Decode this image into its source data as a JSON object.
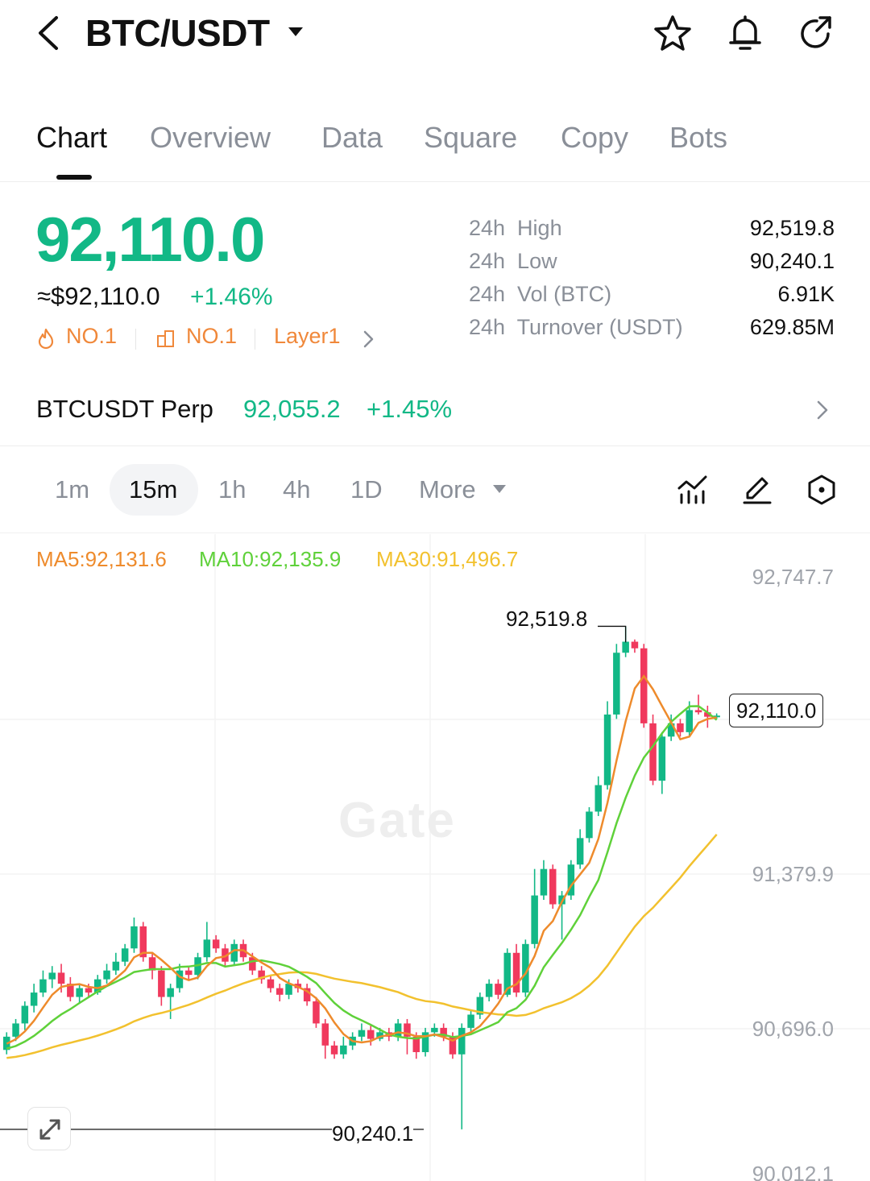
{
  "header": {
    "pair": "BTC/USDT",
    "icons": [
      "back-icon",
      "caret-down-icon",
      "star-icon",
      "bell-icon",
      "share-icon"
    ]
  },
  "tabs": [
    "Chart",
    "Overview",
    "Data",
    "Square",
    "Copy",
    "Bots"
  ],
  "ticker": {
    "last_price": "92,110.0",
    "usd_price": "≈$92,110.0",
    "change": "+1.46%",
    "tags": [
      "NO.1",
      "NO.1",
      "Layer1"
    ],
    "stats": [
      {
        "label": "24h  High",
        "value": "92,519.8"
      },
      {
        "label": "24h  Low",
        "value": "90,240.1"
      },
      {
        "label": "24h  Vol (BTC)",
        "value": "6.91K"
      },
      {
        "label": "24h  Turnover (USDT)",
        "value": "629.85M"
      }
    ]
  },
  "perp": {
    "name": "BTCUSDT Perp",
    "price": "92,055.2",
    "change": "+1.45%"
  },
  "intervals": {
    "items": [
      "1m",
      "15m",
      "1h",
      "4h",
      "1D",
      "More"
    ],
    "selected": "15m"
  },
  "chart": {
    "ma5": "MA5:92,131.6",
    "ma10": "MA10:92,135.9",
    "ma30": "MA30:91,496.7",
    "y_labels": [
      "92,747.7",
      "91,379.9",
      "90,696.0",
      "90,012.1"
    ],
    "high_marker": "92,519.8",
    "low_marker": "90,240.1",
    "last_price": "92,110.0",
    "watermark": "Gate",
    "colors": {
      "up": "#12b886",
      "down": "#f0395d",
      "ma5": "#ee8b2c",
      "ma10": "#5fd13a",
      "ma30": "#f2c12e"
    }
  },
  "chart_data": {
    "type": "candlestick",
    "interval": "15m",
    "y_axis_ticks": [
      92747.7,
      91379.9,
      90696.0,
      90012.1
    ],
    "candles": [
      [
        90600,
        90660,
        90580,
        90680
      ],
      [
        90660,
        90720,
        90640,
        90740
      ],
      [
        90720,
        90800,
        90690,
        90820
      ],
      [
        90800,
        90860,
        90770,
        90900
      ],
      [
        90860,
        90920,
        90840,
        90960
      ],
      [
        90920,
        90950,
        90880,
        90980
      ],
      [
        90950,
        90900,
        90860,
        90990
      ],
      [
        90900,
        90840,
        90820,
        90930
      ],
      [
        90840,
        90880,
        90810,
        90900
      ],
      [
        90880,
        90860,
        90840,
        90900
      ],
      [
        90860,
        90920,
        90850,
        90940
      ],
      [
        90920,
        90960,
        90900,
        90990
      ],
      [
        90960,
        91000,
        90940,
        91040
      ],
      [
        91000,
        91060,
        90980,
        91080
      ],
      [
        91060,
        91160,
        91040,
        91200
      ],
      [
        91160,
        91020,
        91000,
        91180
      ],
      [
        91020,
        90960,
        90920,
        91040
      ],
      [
        90960,
        90840,
        90800,
        90980
      ],
      [
        90840,
        90880,
        90740,
        90900
      ],
      [
        90880,
        90960,
        90860,
        90990
      ],
      [
        90960,
        90940,
        90920,
        90980
      ],
      [
        90940,
        91020,
        90920,
        91040
      ],
      [
        91020,
        91100,
        91000,
        91180
      ],
      [
        91100,
        91060,
        91040,
        91120
      ],
      [
        91060,
        91000,
        90980,
        91080
      ],
      [
        91000,
        91080,
        90980,
        91100
      ],
      [
        91080,
        91020,
        91000,
        91100
      ],
      [
        91020,
        90960,
        90940,
        91040
      ],
      [
        90960,
        90920,
        90900,
        90980
      ],
      [
        90920,
        90880,
        90860,
        90940
      ],
      [
        90880,
        90850,
        90820,
        90900
      ],
      [
        90850,
        90900,
        90830,
        90920
      ],
      [
        90900,
        90880,
        90860,
        90920
      ],
      [
        90880,
        90820,
        90800,
        90900
      ],
      [
        90820,
        90720,
        90700,
        90840
      ],
      [
        90720,
        90620,
        90560,
        90740
      ],
      [
        90620,
        90580,
        90560,
        90640
      ],
      [
        90580,
        90620,
        90560,
        90660
      ],
      [
        90620,
        90660,
        90600,
        90680
      ],
      [
        90660,
        90690,
        90640,
        90720
      ],
      [
        90690,
        90650,
        90620,
        90710
      ],
      [
        90650,
        90680,
        90640,
        90700
      ],
      [
        90680,
        90660,
        90640,
        90700
      ],
      [
        90660,
        90720,
        90640,
        90740
      ],
      [
        90720,
        90660,
        90580,
        90740
      ],
      [
        90660,
        90590,
        90560,
        90680
      ],
      [
        90590,
        90680,
        90570,
        90700
      ],
      [
        90680,
        90700,
        90660,
        90720
      ],
      [
        90700,
        90660,
        90640,
        90720
      ],
      [
        90660,
        90580,
        90560,
        90680
      ],
      [
        90580,
        90700,
        90240,
        90720
      ],
      [
        90700,
        90760,
        90680,
        90780
      ],
      [
        90760,
        90840,
        90740,
        90860
      ],
      [
        90840,
        90900,
        90820,
        90920
      ],
      [
        90900,
        90850,
        90830,
        90920
      ],
      [
        90850,
        91040,
        90840,
        91060
      ],
      [
        91040,
        90860,
        90840,
        91080
      ],
      [
        90860,
        91080,
        90840,
        91100
      ],
      [
        91080,
        91300,
        91060,
        91420
      ],
      [
        91300,
        91420,
        91280,
        91460
      ],
      [
        91420,
        91260,
        91240,
        91440
      ],
      [
        91260,
        91300,
        91100,
        91320
      ],
      [
        91300,
        91440,
        91280,
        91460
      ],
      [
        91440,
        91560,
        91420,
        91600
      ],
      [
        91560,
        91680,
        91540,
        91700
      ],
      [
        91680,
        91800,
        91660,
        91840
      ],
      [
        91800,
        92120,
        91780,
        92180
      ],
      [
        92120,
        92400,
        92100,
        92440
      ],
      [
        92400,
        92450,
        92380,
        92519.8
      ],
      [
        92450,
        92420,
        92400,
        92460
      ],
      [
        92420,
        92080,
        92060,
        92440
      ],
      [
        92080,
        91820,
        91800,
        92120
      ],
      [
        91820,
        92020,
        91760,
        92040
      ],
      [
        92020,
        92080,
        92000,
        92120
      ],
      [
        92080,
        92040,
        92020,
        92100
      ],
      [
        92040,
        92140,
        92020,
        92180
      ],
      [
        92140,
        92130,
        92120,
        92210
      ],
      [
        92130,
        92110,
        92060,
        92160
      ],
      [
        92110,
        92115,
        92100,
        92125
      ]
    ],
    "ma30_end": 91496.7,
    "high": 92519.8,
    "low": 90240.1,
    "last": 92110.0
  }
}
